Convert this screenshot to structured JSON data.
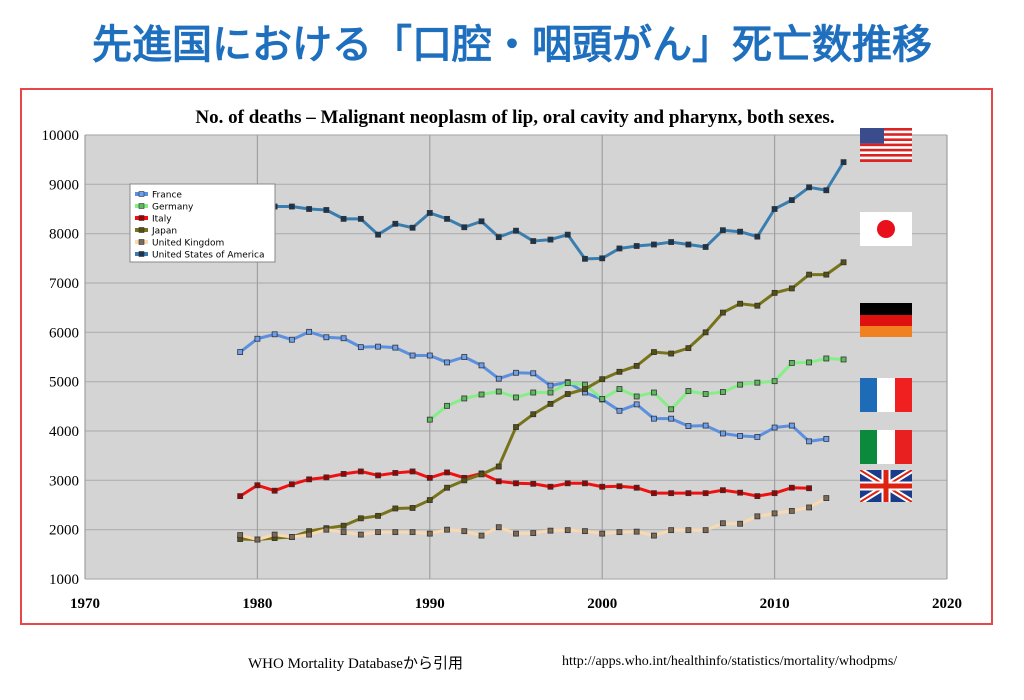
{
  "page_title": "先進国における「口腔・咽頭がん」死亡数推移",
  "footer": {
    "source": "WHO Mortality Databaseから引用",
    "url": "http://apps.who.int/healthinfo/statistics/mortality/whodpms/"
  },
  "flags": [
    "usa-flag",
    "japan-flag",
    "germany-flag",
    "france-flag",
    "italy-flag",
    "uk-flag"
  ],
  "chart_data": {
    "type": "line",
    "title": "No. of deaths – Malignant neoplasm of lip, oral cavity and pharynx, both sexes.",
    "xlim": [
      1970,
      2020
    ],
    "ylim": [
      1000,
      10000
    ],
    "xticks": [
      "1970",
      "1980",
      "1990",
      "2000",
      "2010",
      "2020"
    ],
    "yticks": [
      "1000",
      "2000",
      "3000",
      "4000",
      "5000",
      "6000",
      "7000",
      "8000",
      "9000",
      "10000"
    ],
    "grid": true,
    "legend_position": "top-left",
    "series": [
      {
        "name": "France",
        "color": "#5b8fe0",
        "marker_fill": "#6fa0f0",
        "start": 1979,
        "values": [
          5600,
          5870,
          5960,
          5850,
          6010,
          5900,
          5880,
          5700,
          5710,
          5690,
          5530,
          5530,
          5390,
          5500,
          5330,
          5060,
          5180,
          5170,
          4920,
          4990,
          4780,
          4640,
          4410,
          4540,
          4250,
          4250,
          4100,
          4110,
          3950,
          3900,
          3880,
          4070,
          4110,
          3790,
          3840
        ]
      },
      {
        "name": "Germany",
        "color": "#86ee86",
        "marker_fill": "#5fb85f",
        "start": 1990,
        "values": [
          4230,
          4510,
          4660,
          4740,
          4800,
          4680,
          4780,
          4780,
          4970,
          4940,
          4650,
          4850,
          4700,
          4780,
          4440,
          4810,
          4750,
          4790,
          4940,
          4980,
          5010,
          5380,
          5390,
          5470,
          5450
        ]
      },
      {
        "name": "Italy",
        "color": "#f01010",
        "marker_fill": "#a00000",
        "start": 1979,
        "values": [
          2680,
          2900,
          2790,
          2920,
          3020,
          3060,
          3130,
          3180,
          3100,
          3150,
          3180,
          3050,
          3160,
          3050,
          3140,
          2980,
          2940,
          2930,
          2870,
          2940,
          2940,
          2870,
          2880,
          2850,
          2740,
          2740,
          2740,
          2740,
          2800,
          2750,
          2680,
          2740,
          2850,
          2840
        ]
      },
      {
        "name": "Japan",
        "color": "#77731b",
        "marker_fill": "#555010",
        "start": 1979,
        "values": [
          1810,
          1800,
          1830,
          1850,
          1970,
          2030,
          2080,
          2230,
          2280,
          2430,
          2440,
          2600,
          2850,
          3000,
          3120,
          3280,
          4080,
          4340,
          4550,
          4750,
          4850,
          5050,
          5200,
          5320,
          5600,
          5570,
          5680,
          6000,
          6400,
          6580,
          6540,
          6800,
          6890,
          7170,
          7170,
          7420
        ]
      },
      {
        "name": "United Kingdom",
        "color": "#f9d9b0",
        "marker_fill": "#7a6a5a",
        "start": 1979,
        "values": [
          1890,
          1800,
          1900,
          1850,
          1900,
          2000,
          1950,
          1900,
          1950,
          1950,
          1950,
          1920,
          2000,
          1970,
          1880,
          2050,
          1920,
          1930,
          1980,
          1990,
          1970,
          1920,
          1950,
          1960,
          1880,
          1990,
          1990,
          1990,
          2130,
          2120,
          2270,
          2330,
          2380,
          2450,
          2640
        ]
      },
      {
        "name": "United States of America",
        "color": "#3a7eb0",
        "marker_fill": "#1a3550",
        "start": 1979,
        "values": [
          8500,
          8520,
          8550,
          8550,
          8500,
          8480,
          8300,
          8300,
          7980,
          8200,
          8120,
          8420,
          8300,
          8130,
          8250,
          7930,
          8060,
          7850,
          7880,
          7980,
          7490,
          7500,
          7700,
          7750,
          7780,
          7830,
          7780,
          7730,
          8070,
          8040,
          7940,
          8500,
          8680,
          8940,
          8880,
          9450
        ]
      }
    ]
  }
}
